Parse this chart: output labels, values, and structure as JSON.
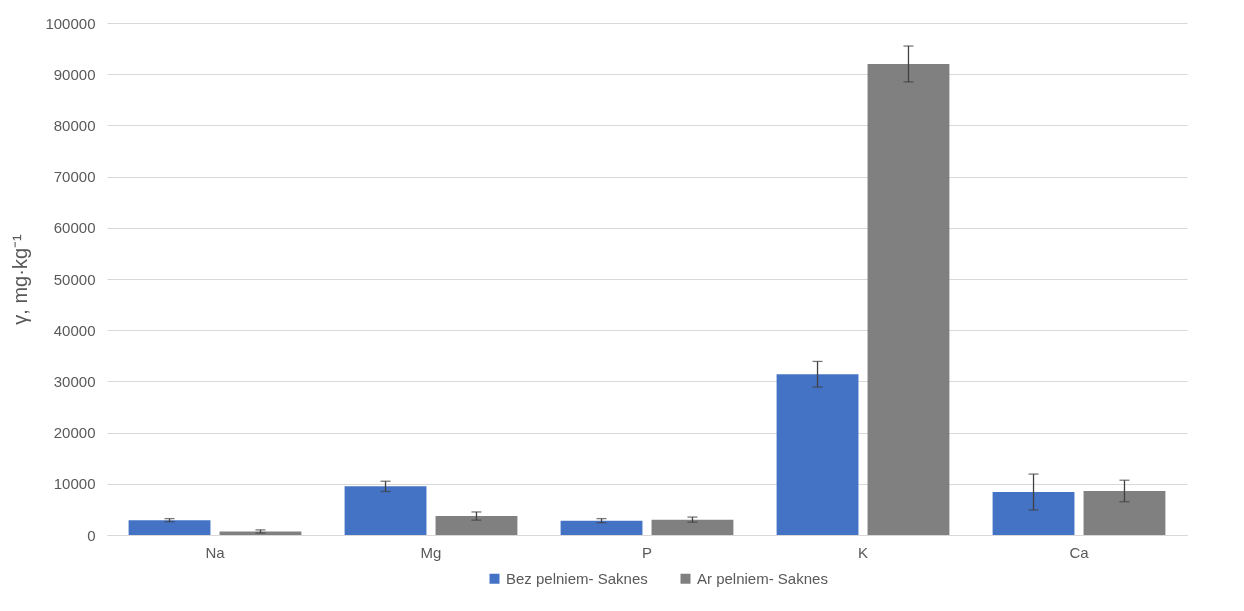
{
  "chart_data": {
    "type": "bar",
    "ylabel": "γ, mg·kg⁻¹",
    "categories": [
      "Na",
      "Mg",
      "P",
      "K",
      "Ca"
    ],
    "series": [
      {
        "name": "Bez pelniem- Saknes",
        "color": "#4472c4",
        "values": [
          2900,
          9500,
          2800,
          31400,
          8400
        ],
        "errors": [
          300,
          1000,
          400,
          2500,
          3500
        ]
      },
      {
        "name": "Ar pelniem- Saknes",
        "color": "#808080",
        "values": [
          700,
          3700,
          3000,
          92000,
          8600
        ],
        "errors": [
          300,
          800,
          500,
          3500,
          2100
        ]
      }
    ],
    "ylim": [
      0,
      100000
    ],
    "yticks": [
      0,
      10000,
      20000,
      30000,
      40000,
      50000,
      60000,
      70000,
      80000,
      90000,
      100000
    ],
    "grid": "y",
    "legend": "bottom"
  }
}
